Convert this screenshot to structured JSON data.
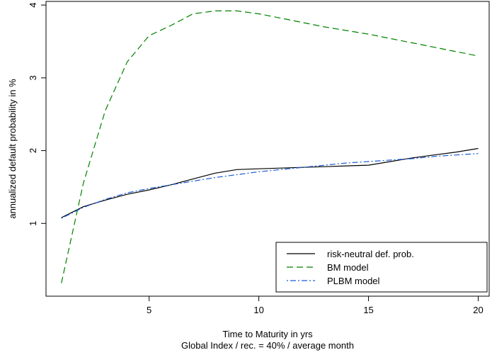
{
  "chart_data": {
    "type": "line",
    "title": "",
    "xlabel": "Time to Maturity in yrs",
    "subtitle": "Global Index / rec. = 40% / average month",
    "ylabel": "annualized default probability in %",
    "xlim": [
      0.3,
      20.5
    ],
    "ylim": [
      0.0,
      4.05
    ],
    "x_ticks": [
      5,
      10,
      15,
      20
    ],
    "y_ticks": [
      1,
      2,
      3,
      4
    ],
    "x_tick_labels": [
      "5",
      "10",
      "15",
      "20"
    ],
    "y_tick_labels": [
      "1",
      "2",
      "3",
      "4"
    ],
    "grid": false,
    "legend_position": "bottom-right",
    "series": [
      {
        "name": "risk-neutral def. prob.",
        "color": "#000000",
        "dash": "solid",
        "x": [
          1,
          2,
          3,
          4,
          5,
          6,
          7,
          8,
          9,
          10,
          11,
          12,
          13,
          14,
          15,
          16,
          17,
          18,
          19,
          20
        ],
        "y": [
          1.08,
          1.23,
          1.32,
          1.4,
          1.46,
          1.53,
          1.61,
          1.69,
          1.74,
          1.75,
          1.76,
          1.77,
          1.78,
          1.79,
          1.8,
          1.85,
          1.9,
          1.94,
          1.98,
          2.03
        ]
      },
      {
        "name": "BM model",
        "color": "#008000",
        "dash": "dashed",
        "x": [
          1,
          2,
          3,
          4,
          5,
          6,
          7,
          8,
          9,
          10,
          11,
          12,
          13,
          14,
          15,
          16,
          17,
          18,
          19,
          20
        ],
        "y": [
          0.18,
          1.55,
          2.55,
          3.22,
          3.58,
          3.72,
          3.88,
          3.92,
          3.92,
          3.88,
          3.82,
          3.76,
          3.7,
          3.65,
          3.6,
          3.54,
          3.48,
          3.42,
          3.36,
          3.3
        ]
      },
      {
        "name": "PLBM model",
        "color": "#1a5bd6",
        "dash": "dotdash",
        "x": [
          1,
          2,
          3,
          4,
          5,
          6,
          7,
          8,
          9,
          10,
          11,
          12,
          13,
          14,
          15,
          16,
          17,
          18,
          19,
          20
        ],
        "y": [
          1.07,
          1.22,
          1.33,
          1.42,
          1.48,
          1.53,
          1.58,
          1.63,
          1.67,
          1.71,
          1.74,
          1.77,
          1.8,
          1.83,
          1.85,
          1.87,
          1.89,
          1.92,
          1.94,
          1.96
        ]
      }
    ]
  }
}
